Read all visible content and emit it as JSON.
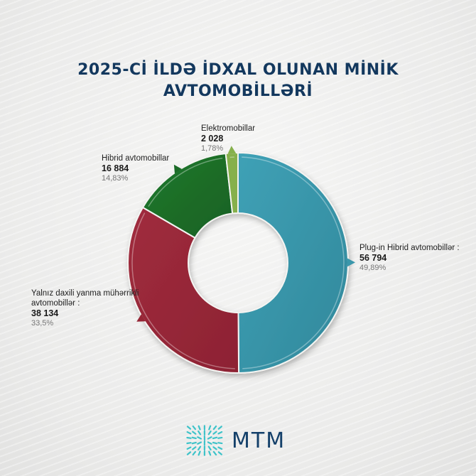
{
  "title": {
    "line1": "2025-Cİ İLDƏ İDXAL OLUNAN MİNİK",
    "line2": "AVTOMOBİLLƏRİ"
  },
  "labels": {
    "electric": {
      "name": "Elektromobillar",
      "value": "2 028",
      "pct": "1,78%"
    },
    "hybrid": {
      "name": "Hibrid avtomobillar",
      "value": "16 884",
      "pct": "14,83%"
    },
    "plugin": {
      "name": "Plug-in Hibrid avtomobillər :",
      "value": "56 794",
      "pct": "49,89%"
    },
    "ice": {
      "name1": "Yalnız daxili yanma mühərrikli",
      "name2": "avtomobillər :",
      "value": "38 134",
      "pct": "33,5%"
    }
  },
  "logo": {
    "text": "MTM",
    "icon": "starburst-grid-icon"
  },
  "colors": {
    "plugin": "#3a97ab",
    "ice": "#962535",
    "hybrid": "#1b6b27",
    "electric": "#86b04c",
    "title": "#13385e"
  },
  "chart_data": {
    "type": "pie",
    "donut": true,
    "title": "2025-ci ildə idxal olunan minik avtomobilləri",
    "categories": [
      "Plug-in Hibrid avtomobillər",
      "Yalnız daxili yanma mühərrikli avtomobillər",
      "Hibrid avtomobillar",
      "Elektromobillar"
    ],
    "values": [
      56794,
      38134,
      16884,
      2028
    ],
    "percentages": [
      49.89,
      33.5,
      14.83,
      1.78
    ],
    "colors": [
      "#3a97ab",
      "#962535",
      "#1b6b27",
      "#86b04c"
    ],
    "start_angle": "12 o'clock, clockwise",
    "legend_position": "callout labels"
  }
}
